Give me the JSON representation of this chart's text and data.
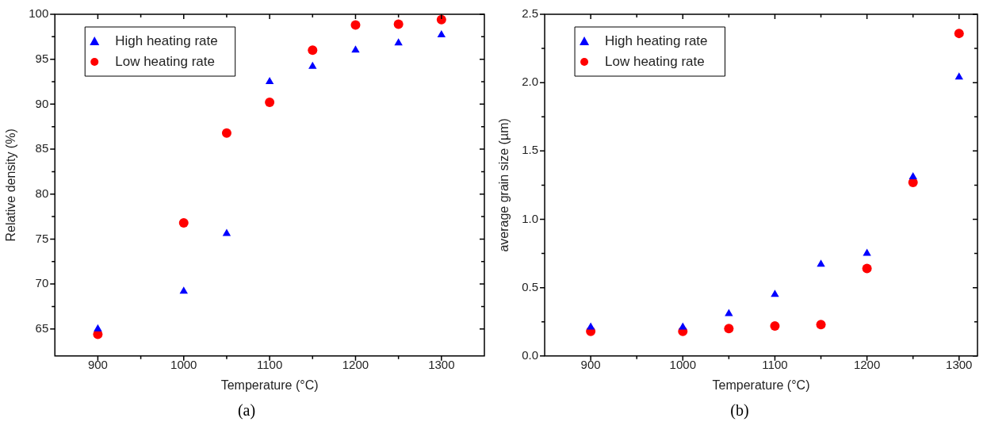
{
  "chart_data": [
    {
      "type": "scatter",
      "xlabel": "Temperature (°C)",
      "ylabel": "Relative density (%)",
      "annotations": [
        "(a)"
      ],
      "x": [
        900,
        1000,
        1050,
        1100,
        1150,
        1200,
        1250,
        1300
      ],
      "series": [
        {
          "name": "High heating rate",
          "color": "#0000ff",
          "marker": "triangle",
          "values": [
            65.0,
            69.2,
            75.6,
            92.5,
            94.2,
            96.0,
            96.8,
            97.7
          ]
        },
        {
          "name": "Low heating rate",
          "color": "#ff0000",
          "marker": "circle",
          "values": [
            64.4,
            76.8,
            86.8,
            90.2,
            96.0,
            98.8,
            98.9,
            99.4
          ]
        }
      ],
      "xlim": [
        850,
        1350
      ],
      "xticks": [
        900,
        1000,
        1100,
        1200,
        1300
      ],
      "ylim": [
        62,
        100
      ],
      "yticks": [
        65,
        70,
        75,
        80,
        85,
        90,
        95,
        100
      ],
      "grid": false,
      "legend": "top left"
    },
    {
      "type": "scatter",
      "xlabel": "Temperature (°C)",
      "ylabel": "average grain size (µm)",
      "annotations": [
        "(b)"
      ],
      "x": [
        900,
        1000,
        1050,
        1100,
        1150,
        1200,
        1250,
        1300
      ],
      "series": [
        {
          "name": "High heating rate",
          "color": "#0000ff",
          "marker": "triangle",
          "values": [
            0.21,
            0.21,
            0.31,
            0.45,
            0.67,
            0.75,
            1.31,
            2.04
          ]
        },
        {
          "name": "Low heating rate",
          "color": "#ff0000",
          "marker": "circle",
          "values": [
            0.18,
            0.18,
            0.2,
            0.22,
            0.23,
            0.64,
            1.27,
            2.36
          ]
        }
      ],
      "xlim": [
        850,
        1320
      ],
      "xticks": [
        900,
        1000,
        1100,
        1200,
        1300
      ],
      "ylim": [
        0,
        2.5
      ],
      "yticks": [
        {
          "value": 0,
          "label": "0.0"
        },
        {
          "value": 0.5,
          "label": "0.5"
        },
        {
          "value": 1,
          "label": "1.0"
        },
        {
          "value": 1.5,
          "label": "1.5"
        },
        {
          "value": 2,
          "label": "2.0"
        },
        {
          "value": 2.5,
          "label": "2.5"
        }
      ],
      "grid": false,
      "legend": "top left"
    }
  ]
}
